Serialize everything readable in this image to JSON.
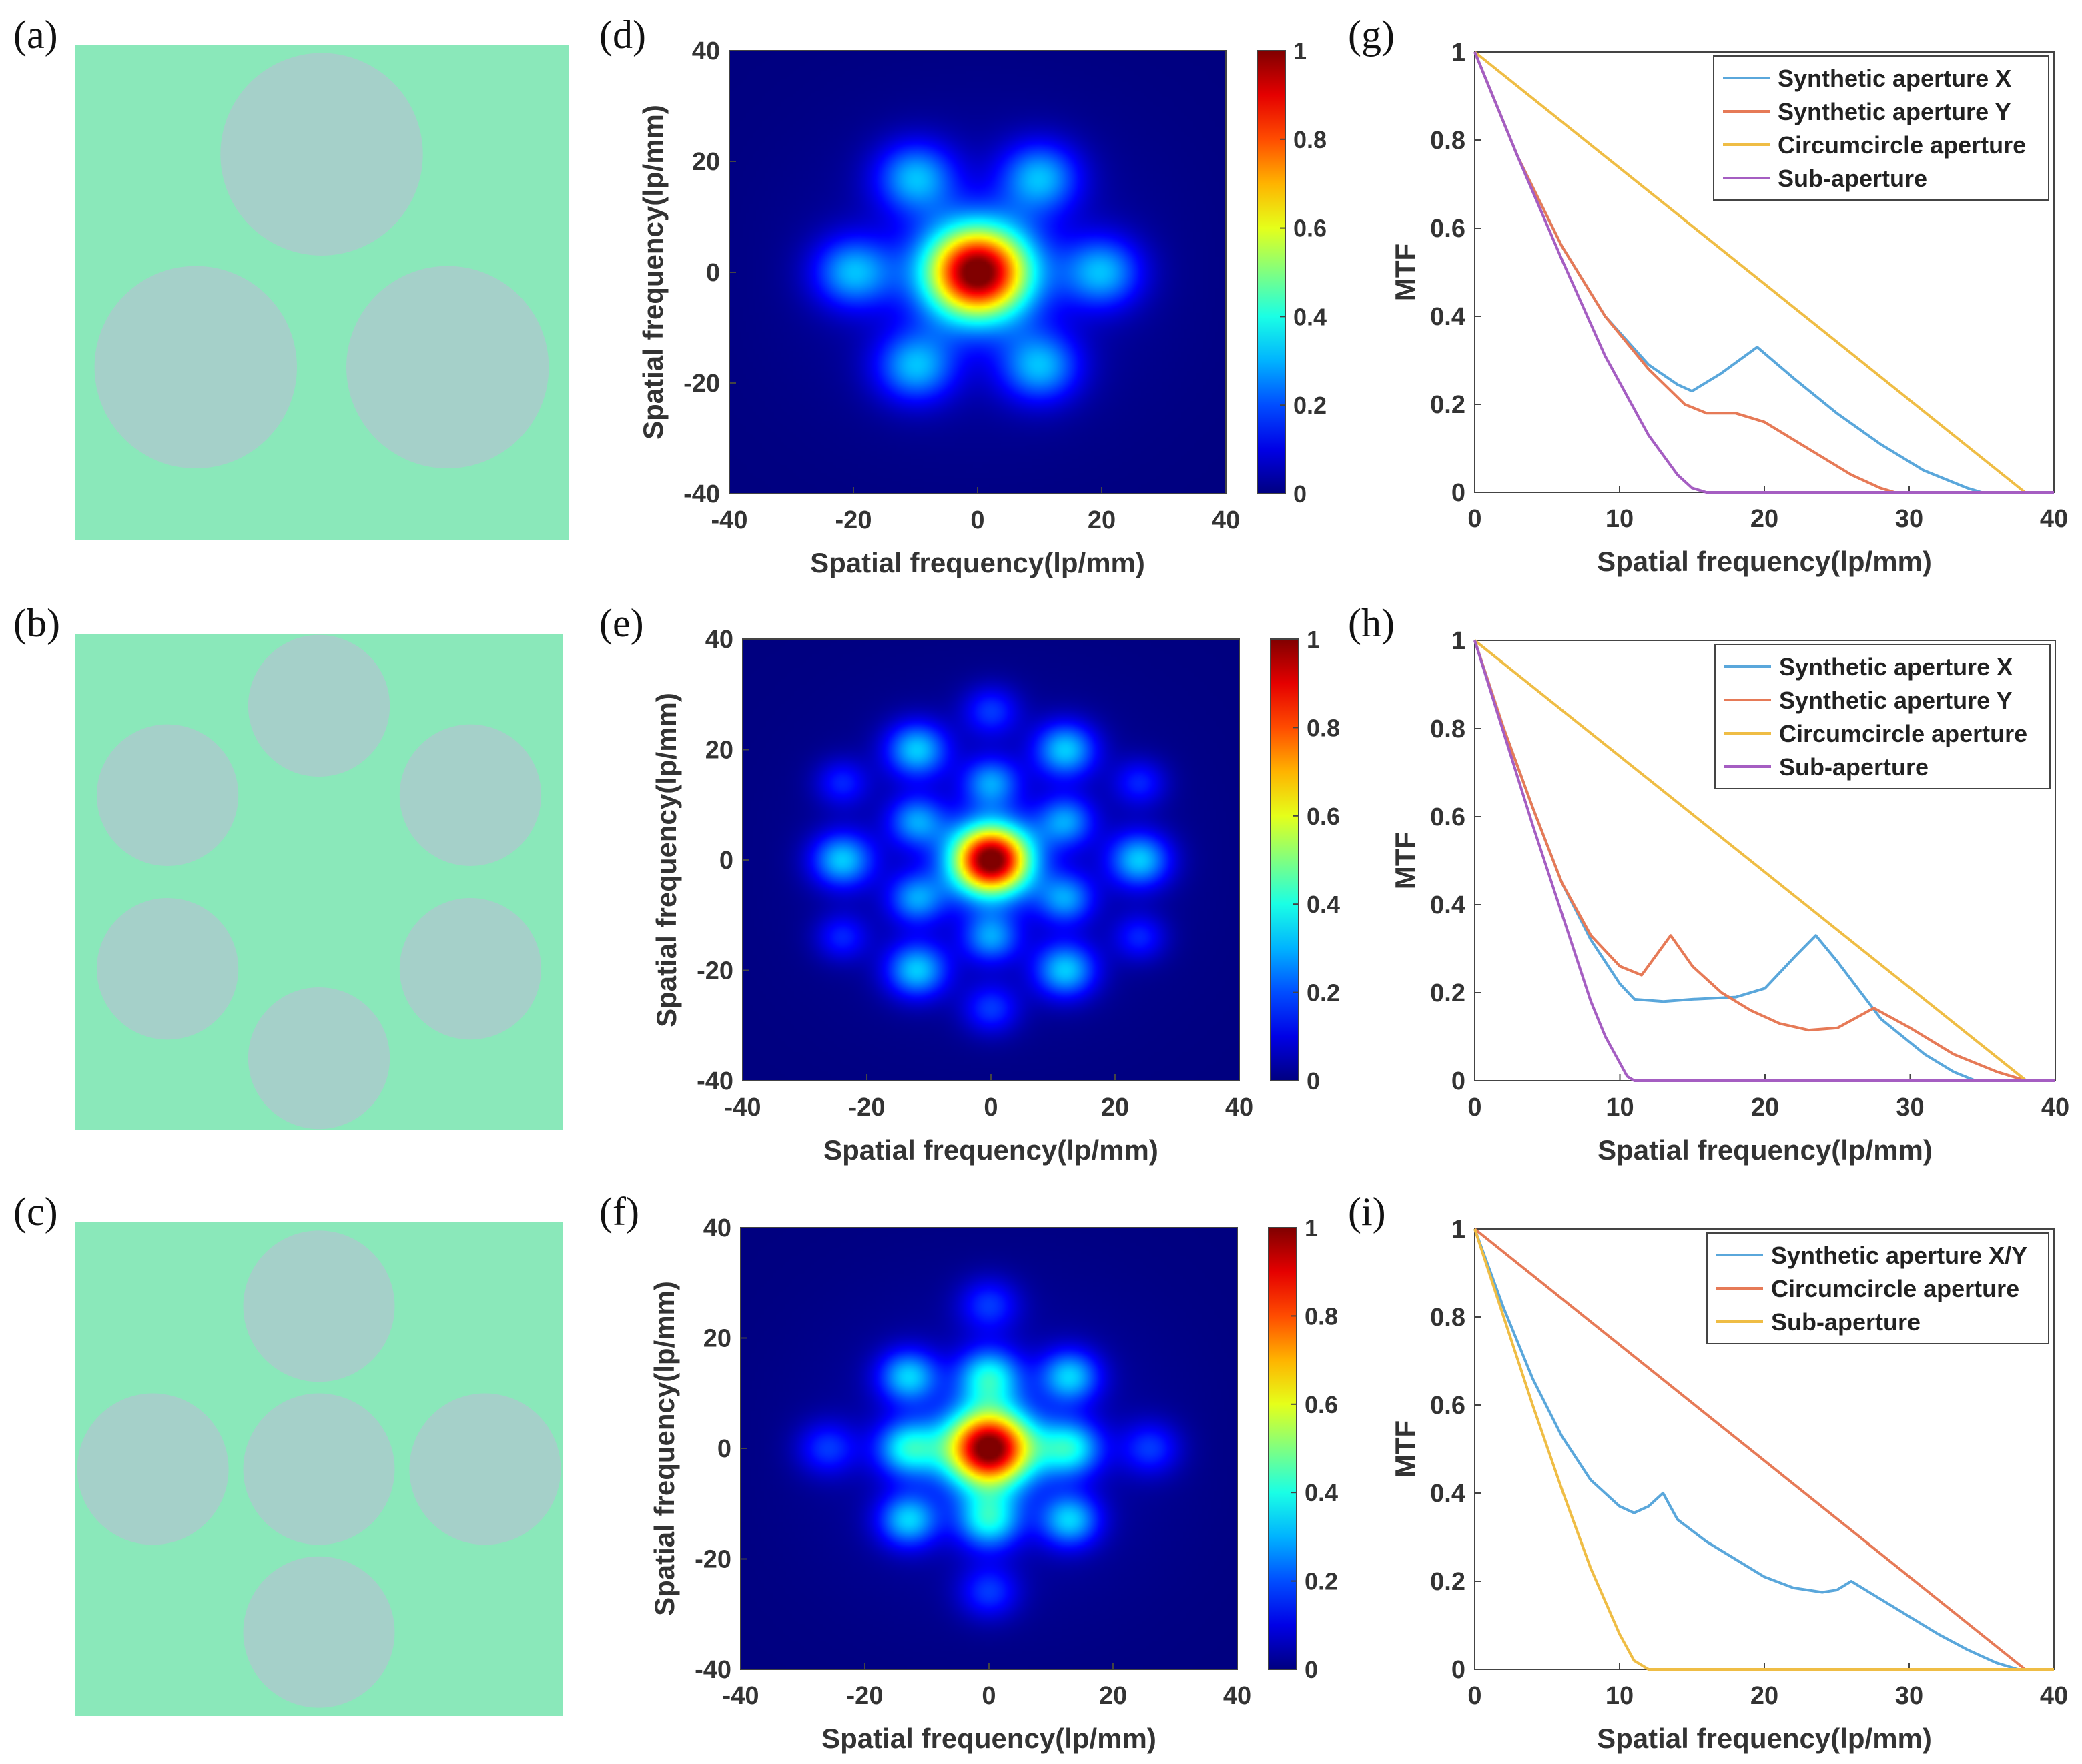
{
  "figure": {
    "panel_labels": [
      "(a)",
      "(b)",
      "(c)",
      "(d)",
      "(e)",
      "(f)",
      "(g)",
      "(h)",
      "(i)"
    ],
    "colors": {
      "aperture_bg": "#8ae8ba",
      "aperture_disk": "#a5d0c9",
      "blue": "#5aa7db",
      "red": "#e67a57",
      "yellow": "#efbd45",
      "purple": "#a55ec2"
    }
  },
  "chart_data": [
    {
      "panel": "(a)",
      "type": "other",
      "description": "aperture layout",
      "apertures": [
        {
          "cx": 0.5,
          "cy": 0.22,
          "r": 0.205
        },
        {
          "cx": 0.245,
          "cy": 0.65,
          "r": 0.205
        },
        {
          "cx": 0.755,
          "cy": 0.65,
          "r": 0.205
        }
      ]
    },
    {
      "panel": "(b)",
      "type": "other",
      "apertures": [
        {
          "cx": 0.5,
          "cy": 0.145,
          "r": 0.145
        },
        {
          "cx": 0.19,
          "cy": 0.325,
          "r": 0.145
        },
        {
          "cx": 0.81,
          "cy": 0.325,
          "r": 0.145
        },
        {
          "cx": 0.19,
          "cy": 0.675,
          "r": 0.145
        },
        {
          "cx": 0.81,
          "cy": 0.675,
          "r": 0.145
        },
        {
          "cx": 0.5,
          "cy": 0.855,
          "r": 0.145
        }
      ]
    },
    {
      "panel": "(c)",
      "type": "other",
      "apertures": [
        {
          "cx": 0.5,
          "cy": 0.17,
          "r": 0.155
        },
        {
          "cx": 0.16,
          "cy": 0.5,
          "r": 0.155
        },
        {
          "cx": 0.5,
          "cy": 0.5,
          "r": 0.155
        },
        {
          "cx": 0.84,
          "cy": 0.5,
          "r": 0.155
        },
        {
          "cx": 0.5,
          "cy": 0.83,
          "r": 0.155
        }
      ]
    },
    {
      "panel": "(d)",
      "type": "heatmap",
      "xlabel": "Spatial frequency(lp/mm)",
      "ylabel": "Spatial frequency(lp/mm)",
      "xlim": [
        -40,
        40
      ],
      "ylim": [
        -40,
        40
      ],
      "xticks": [
        "-40",
        "-20",
        "0",
        "20",
        "40"
      ],
      "yticks": [
        "40",
        "20",
        "0",
        "-20",
        "-40"
      ],
      "colorbar_ticks": [
        "1",
        "0.8",
        "0.6",
        "0.4",
        "0.2",
        "0"
      ],
      "peaks": [
        [
          0,
          0,
          1.0,
          6
        ],
        [
          20,
          0,
          0.28,
          4.5
        ],
        [
          -20,
          0,
          0.28,
          4.5
        ],
        [
          10,
          17,
          0.28,
          4.5
        ],
        [
          -10,
          17,
          0.28,
          4.5
        ],
        [
          10,
          -17,
          0.28,
          4.5
        ],
        [
          -10,
          -17,
          0.28,
          4.5
        ]
      ]
    },
    {
      "panel": "(e)",
      "type": "heatmap",
      "xlabel": "Spatial frequency(lp/mm)",
      "ylabel": "Spatial frequency(lp/mm)",
      "xlim": [
        -40,
        40
      ],
      "ylim": [
        -40,
        40
      ],
      "xticks": [
        "-40",
        "-20",
        "0",
        "20",
        "40"
      ],
      "yticks": [
        "40",
        "20",
        "0",
        "-20",
        "-40"
      ],
      "colorbar_ticks": [
        "1",
        "0.8",
        "0.6",
        "0.4",
        "0.2",
        "0"
      ],
      "peaks": [
        [
          0,
          0,
          1.0,
          4.5
        ],
        [
          24,
          0,
          0.3,
          3.5
        ],
        [
          -24,
          0,
          0.3,
          3.5
        ],
        [
          12,
          20,
          0.3,
          3.5
        ],
        [
          -12,
          20,
          0.3,
          3.5
        ],
        [
          12,
          -20,
          0.3,
          3.5
        ],
        [
          -12,
          -20,
          0.3,
          3.5
        ],
        [
          12,
          7,
          0.24,
          3.2
        ],
        [
          -12,
          7,
          0.24,
          3.2
        ],
        [
          12,
          -7,
          0.24,
          3.2
        ],
        [
          -12,
          -7,
          0.24,
          3.2
        ],
        [
          0,
          14,
          0.24,
          3.2
        ],
        [
          0,
          -14,
          0.24,
          3.2
        ],
        [
          0,
          27,
          0.16,
          3.2
        ],
        [
          0,
          -27,
          0.16,
          3.2
        ],
        [
          24,
          14,
          0.14,
          3.0
        ],
        [
          -24,
          14,
          0.14,
          3.0
        ],
        [
          24,
          -14,
          0.14,
          3.0
        ],
        [
          -24,
          -14,
          0.14,
          3.0
        ]
      ]
    },
    {
      "panel": "(f)",
      "type": "heatmap",
      "xlabel": "Spatial frequency(lp/mm)",
      "ylabel": "Spatial frequency(lp/mm)",
      "xlim": [
        -40,
        40
      ],
      "ylim": [
        -40,
        40
      ],
      "xticks": [
        "-40",
        "-20",
        "0",
        "20",
        "40"
      ],
      "yticks": [
        "40",
        "20",
        "0",
        "-20",
        "-40"
      ],
      "colorbar_ticks": [
        "1",
        "0.8",
        "0.6",
        "0.4",
        "0.2",
        "0"
      ],
      "peaks": [
        [
          0,
          0,
          1.0,
          5
        ],
        [
          13,
          0,
          0.34,
          3.6
        ],
        [
          -13,
          0,
          0.34,
          3.6
        ],
        [
          0,
          13,
          0.34,
          3.6
        ],
        [
          0,
          -13,
          0.34,
          3.6
        ],
        [
          13,
          13,
          0.3,
          3.4
        ],
        [
          -13,
          13,
          0.3,
          3.4
        ],
        [
          13,
          -13,
          0.3,
          3.4
        ],
        [
          -13,
          -13,
          0.3,
          3.4
        ],
        [
          26,
          0,
          0.16,
          3.4
        ],
        [
          -26,
          0,
          0.16,
          3.4
        ],
        [
          0,
          26,
          0.16,
          3.4
        ],
        [
          0,
          -26,
          0.16,
          3.4
        ]
      ]
    },
    {
      "panel": "(g)",
      "type": "line",
      "xlabel": "Spatial frequency(lp/mm)",
      "ylabel": "MTF",
      "xlim": [
        0,
        40
      ],
      "ylim": [
        0,
        1
      ],
      "xticks": [
        "0",
        "10",
        "20",
        "30",
        "40"
      ],
      "yticks": [
        "1",
        "0.8",
        "0.6",
        "0.4",
        "0.2",
        "0"
      ],
      "series": [
        {
          "name": "Synthetic aperture X",
          "color": "#5aa7db",
          "x": [
            0,
            3,
            6,
            9,
            12,
            14,
            15,
            17,
            19.5,
            22,
            25,
            28,
            31,
            34,
            35,
            40
          ],
          "y": [
            1,
            0.76,
            0.56,
            0.4,
            0.29,
            0.245,
            0.23,
            0.27,
            0.33,
            0.26,
            0.18,
            0.11,
            0.05,
            0.01,
            0,
            0
          ]
        },
        {
          "name": "Synthetic aperture Y",
          "color": "#e67a57",
          "x": [
            0,
            3,
            6,
            9,
            12,
            14.5,
            16,
            18,
            20,
            22,
            24,
            26,
            28,
            29,
            40
          ],
          "y": [
            1,
            0.76,
            0.56,
            0.4,
            0.28,
            0.2,
            0.18,
            0.18,
            0.16,
            0.12,
            0.08,
            0.04,
            0.01,
            0,
            0
          ]
        },
        {
          "name": "Circumcircle aperture",
          "color": "#efbd45",
          "x": [
            0,
            38,
            40
          ],
          "y": [
            1,
            0,
            0
          ]
        },
        {
          "name": "Sub-aperture",
          "color": "#a55ec2",
          "x": [
            0,
            3,
            6,
            9,
            12,
            14,
            15,
            16,
            40
          ],
          "y": [
            1,
            0.76,
            0.53,
            0.31,
            0.13,
            0.04,
            0.01,
            0,
            0
          ]
        }
      ],
      "legend_position": "top-right"
    },
    {
      "panel": "(h)",
      "type": "line",
      "xlabel": "Spatial frequency(lp/mm)",
      "ylabel": "MTF",
      "xlim": [
        0,
        40
      ],
      "ylim": [
        0,
        1
      ],
      "xticks": [
        "0",
        "10",
        "20",
        "30",
        "40"
      ],
      "yticks": [
        "1",
        "0.8",
        "0.6",
        "0.4",
        "0.2",
        "0"
      ],
      "series": [
        {
          "name": "Synthetic aperture X",
          "color": "#5aa7db",
          "x": [
            0,
            2,
            4,
            6,
            8,
            10,
            11,
            13,
            15,
            18,
            20,
            22,
            23.5,
            25,
            28,
            31,
            33,
            34.5,
            40
          ],
          "y": [
            1,
            0.8,
            0.62,
            0.45,
            0.32,
            0.22,
            0.185,
            0.18,
            0.185,
            0.19,
            0.21,
            0.28,
            0.33,
            0.27,
            0.14,
            0.06,
            0.02,
            0,
            0
          ]
        },
        {
          "name": "Synthetic aperture Y",
          "color": "#e67a57",
          "x": [
            0,
            2,
            4,
            6,
            8,
            10,
            11.5,
            13.5,
            15,
            17,
            19,
            21,
            23,
            25,
            27.5,
            30,
            33,
            36,
            38,
            40
          ],
          "y": [
            1,
            0.8,
            0.62,
            0.45,
            0.33,
            0.26,
            0.24,
            0.33,
            0.26,
            0.2,
            0.16,
            0.13,
            0.115,
            0.12,
            0.165,
            0.12,
            0.06,
            0.02,
            0,
            0
          ]
        },
        {
          "name": "Circumcircle aperture",
          "color": "#efbd45",
          "x": [
            0,
            38,
            40
          ],
          "y": [
            1,
            0,
            0
          ]
        },
        {
          "name": "Sub-aperture",
          "color": "#a55ec2",
          "x": [
            0,
            2,
            4,
            6,
            8,
            9,
            10,
            10.5,
            11,
            40
          ],
          "y": [
            1,
            0.79,
            0.58,
            0.38,
            0.18,
            0.1,
            0.04,
            0.01,
            0,
            0
          ]
        }
      ],
      "legend_position": "top-right"
    },
    {
      "panel": "(i)",
      "type": "line",
      "xlabel": "Spatial frequency(lp/mm)",
      "ylabel": "MTF",
      "xlim": [
        0,
        40
      ],
      "ylim": [
        0,
        1
      ],
      "xticks": [
        "0",
        "10",
        "20",
        "30",
        "40"
      ],
      "yticks": [
        "1",
        "0.8",
        "0.6",
        "0.4",
        "0.2",
        "0"
      ],
      "series": [
        {
          "name": "Synthetic aperture X/Y",
          "color": "#5aa7db",
          "x": [
            0,
            2,
            4,
            6,
            8,
            10,
            11,
            12,
            13,
            14,
            16,
            18,
            20,
            22,
            24,
            25,
            26,
            28,
            30,
            32,
            34,
            36,
            37.5,
            40
          ],
          "y": [
            1,
            0.82,
            0.66,
            0.53,
            0.43,
            0.37,
            0.355,
            0.37,
            0.4,
            0.34,
            0.29,
            0.25,
            0.21,
            0.185,
            0.175,
            0.18,
            0.2,
            0.16,
            0.12,
            0.08,
            0.045,
            0.015,
            0,
            0
          ]
        },
        {
          "name": "Circumcircle aperture",
          "color": "#e67a57",
          "x": [
            0,
            38,
            40
          ],
          "y": [
            1,
            0,
            0
          ]
        },
        {
          "name": "Sub-aperture",
          "color": "#efbd45",
          "x": [
            0,
            2,
            4,
            6,
            8,
            10,
            11,
            12,
            40
          ],
          "y": [
            1,
            0.8,
            0.6,
            0.41,
            0.23,
            0.08,
            0.02,
            0,
            0
          ]
        }
      ],
      "legend_position": "top-right"
    }
  ]
}
